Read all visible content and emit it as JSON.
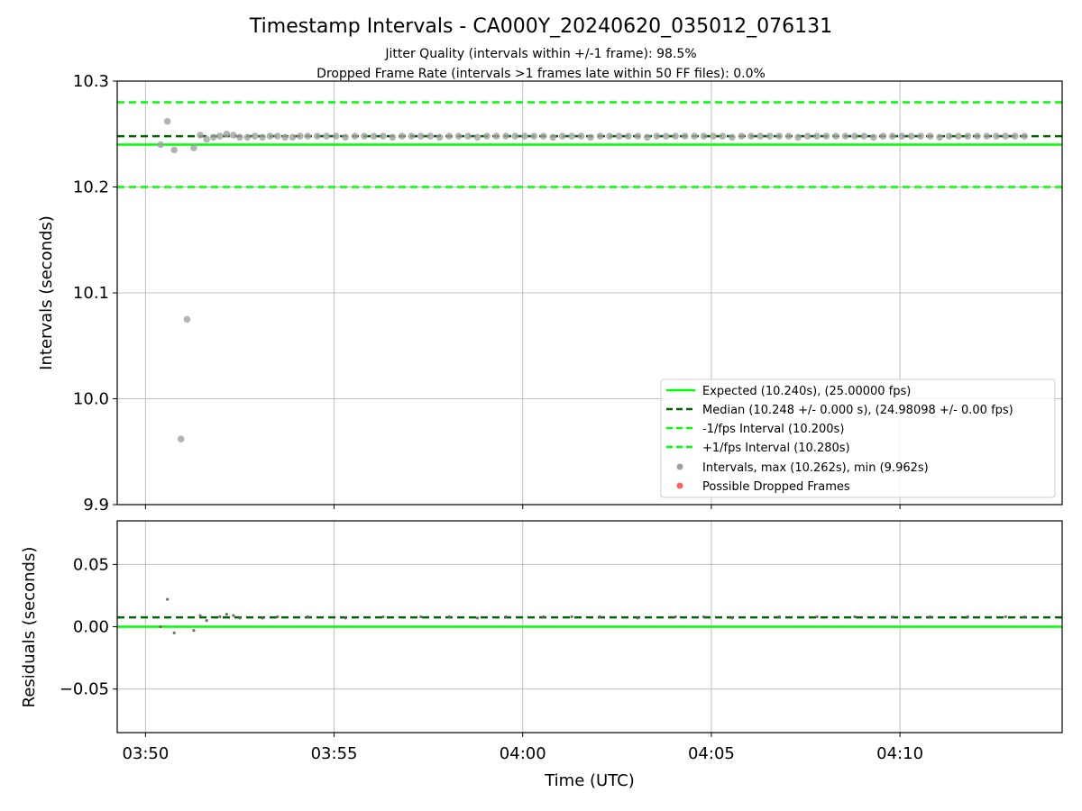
{
  "chart_data": {
    "type": "scatter",
    "title": "Timestamp Intervals - CA000Y_20240620_035012_076131",
    "subtitle_lines": [
      "Jitter Quality (intervals within +/-1 frame): 98.5%",
      "Dropped Frame Rate (intervals >1 frames late within 50 FF files): 0.0%"
    ],
    "xlabel": "Time (UTC)",
    "x_ticks": [
      "03:50",
      "03:55",
      "04:00",
      "04:05",
      "04:10"
    ],
    "x_tick_minutes": [
      0,
      5,
      10,
      15,
      20
    ],
    "x_range_minutes": [
      -0.75,
      24.3
    ],
    "top": {
      "ylabel": "Intervals (seconds)",
      "ylim": [
        9.9,
        10.3
      ],
      "y_ticks": [
        "9.9",
        "10.0",
        "10.1",
        "10.2",
        "10.3"
      ],
      "y_tick_values": [
        9.9,
        10.0,
        10.1,
        10.2,
        10.3
      ],
      "grid": true,
      "lines": [
        {
          "name": "Expected (10.240s), (25.00000 fps)",
          "value": 10.24,
          "color": "#00ff00",
          "style": "solid"
        },
        {
          "name": "Median (10.248 +/- 0.000 s), (24.98098 +/- 0.00 fps)",
          "value": 10.248,
          "color": "#006400",
          "style": "dashed"
        },
        {
          "name": "-1/fps Interval (10.200s)",
          "value": 10.2,
          "color": "#00ff00",
          "style": "dashed"
        },
        {
          "name": "+1/fps Interval (10.280s)",
          "value": 10.28,
          "color": "#00ff00",
          "style": "dashed"
        }
      ],
      "points_series_name": "Intervals, max (10.262s), min (9.962s)",
      "points_color": "#a0a0a0",
      "dropped_series_name": "Possible Dropped Frames",
      "dropped_color": "#ff6060",
      "legend_position": "lower-right",
      "points": [
        [
          0.4,
          10.24
        ],
        [
          0.58,
          10.262
        ],
        [
          0.76,
          10.235
        ],
        [
          0.94,
          9.962
        ],
        [
          1.1,
          10.075
        ],
        [
          1.28,
          10.237
        ],
        [
          1.45,
          10.249
        ],
        [
          1.62,
          10.245
        ],
        [
          1.8,
          10.247
        ],
        [
          1.97,
          10.248
        ],
        [
          2.15,
          10.25
        ],
        [
          2.33,
          10.249
        ],
        [
          2.5,
          10.247
        ],
        [
          2.7,
          10.247
        ],
        [
          2.9,
          10.248
        ],
        [
          3.1,
          10.247
        ],
        [
          3.3,
          10.248
        ],
        [
          3.5,
          10.248
        ],
        [
          3.7,
          10.247
        ],
        [
          3.9,
          10.247
        ],
        [
          4.1,
          10.248
        ],
        [
          4.3,
          10.248
        ],
        [
          4.55,
          10.248
        ],
        [
          4.8,
          10.248
        ],
        [
          5.05,
          10.248
        ],
        [
          5.3,
          10.247
        ],
        [
          5.55,
          10.248
        ],
        [
          5.8,
          10.248
        ],
        [
          6.05,
          10.248
        ],
        [
          6.3,
          10.248
        ],
        [
          6.55,
          10.247
        ],
        [
          6.8,
          10.248
        ],
        [
          7.05,
          10.248
        ],
        [
          7.3,
          10.248
        ],
        [
          7.55,
          10.248
        ],
        [
          7.8,
          10.247
        ],
        [
          8.05,
          10.248
        ],
        [
          8.3,
          10.248
        ],
        [
          8.55,
          10.248
        ],
        [
          8.8,
          10.247
        ],
        [
          9.05,
          10.248
        ],
        [
          9.3,
          10.248
        ],
        [
          9.55,
          10.248
        ],
        [
          9.8,
          10.248
        ],
        [
          10.05,
          10.248
        ],
        [
          10.3,
          10.248
        ],
        [
          10.55,
          10.248
        ],
        [
          10.8,
          10.247
        ],
        [
          11.05,
          10.248
        ],
        [
          11.3,
          10.248
        ],
        [
          11.55,
          10.248
        ],
        [
          11.8,
          10.247
        ],
        [
          12.05,
          10.248
        ],
        [
          12.3,
          10.248
        ],
        [
          12.55,
          10.248
        ],
        [
          12.8,
          10.248
        ],
        [
          13.05,
          10.248
        ],
        [
          13.3,
          10.247
        ],
        [
          13.55,
          10.248
        ],
        [
          13.8,
          10.248
        ],
        [
          14.05,
          10.248
        ],
        [
          14.3,
          10.248
        ],
        [
          14.55,
          10.248
        ],
        [
          14.8,
          10.248
        ],
        [
          15.05,
          10.248
        ],
        [
          15.3,
          10.248
        ],
        [
          15.55,
          10.247
        ],
        [
          15.8,
          10.248
        ],
        [
          16.05,
          10.248
        ],
        [
          16.3,
          10.248
        ],
        [
          16.55,
          10.248
        ],
        [
          16.8,
          10.248
        ],
        [
          17.05,
          10.248
        ],
        [
          17.3,
          10.247
        ],
        [
          17.55,
          10.248
        ],
        [
          17.8,
          10.248
        ],
        [
          18.05,
          10.248
        ],
        [
          18.3,
          10.248
        ],
        [
          18.55,
          10.248
        ],
        [
          18.8,
          10.248
        ],
        [
          19.05,
          10.248
        ],
        [
          19.3,
          10.247
        ],
        [
          19.55,
          10.248
        ],
        [
          19.8,
          10.248
        ],
        [
          20.05,
          10.248
        ],
        [
          20.3,
          10.248
        ],
        [
          20.55,
          10.248
        ],
        [
          20.8,
          10.248
        ],
        [
          21.05,
          10.247
        ],
        [
          21.3,
          10.248
        ],
        [
          21.55,
          10.248
        ],
        [
          21.8,
          10.248
        ],
        [
          22.05,
          10.248
        ],
        [
          22.3,
          10.248
        ],
        [
          22.55,
          10.248
        ],
        [
          22.8,
          10.248
        ],
        [
          23.05,
          10.248
        ],
        [
          23.3,
          10.248
        ]
      ]
    },
    "bottom": {
      "ylabel": "Residuals (seconds)",
      "ylim": [
        -0.085,
        0.085
      ],
      "y_ticks": [
        "−0.05",
        "0.00",
        "0.05"
      ],
      "y_tick_values": [
        -0.05,
        0.0,
        0.05
      ],
      "grid": true,
      "lines": [
        {
          "value": 0.0,
          "color": "#00ff00",
          "style": "solid"
        },
        {
          "value": 0.0075,
          "color": "#006400",
          "style": "dashed"
        }
      ],
      "points_color": "#606060",
      "points": [
        [
          0.4,
          0.0
        ],
        [
          0.58,
          0.022
        ],
        [
          0.76,
          -0.005
        ],
        [
          1.28,
          -0.003
        ],
        [
          1.45,
          0.009
        ],
        [
          1.62,
          0.005
        ],
        [
          1.97,
          0.008
        ],
        [
          2.15,
          0.01
        ],
        [
          2.33,
          0.009
        ],
        [
          2.5,
          0.007
        ],
        [
          3.1,
          0.007
        ],
        [
          3.5,
          0.008
        ],
        [
          4.3,
          0.008
        ],
        [
          5.3,
          0.007
        ],
        [
          6.3,
          0.008
        ],
        [
          7.3,
          0.008
        ],
        [
          8.05,
          0.008
        ],
        [
          8.8,
          0.007
        ],
        [
          9.55,
          0.008
        ],
        [
          10.55,
          0.008
        ],
        [
          11.3,
          0.008
        ],
        [
          12.05,
          0.008
        ],
        [
          13.05,
          0.007
        ],
        [
          14.05,
          0.008
        ],
        [
          14.8,
          0.008
        ],
        [
          15.55,
          0.007
        ],
        [
          16.8,
          0.008
        ],
        [
          17.8,
          0.008
        ],
        [
          18.8,
          0.008
        ],
        [
          19.8,
          0.008
        ],
        [
          20.8,
          0.008
        ],
        [
          21.8,
          0.008
        ],
        [
          22.8,
          0.008
        ],
        [
          23.3,
          0.008
        ]
      ]
    }
  }
}
